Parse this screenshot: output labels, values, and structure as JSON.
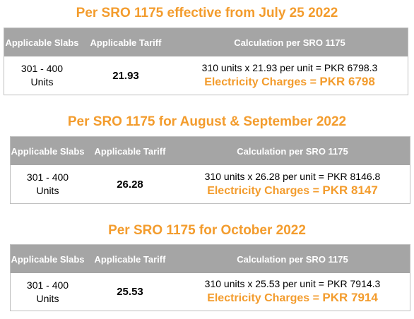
{
  "sections": [
    {
      "title": "Per SRO 1175 effective from July 25 2022",
      "headers": [
        "Applicable Slabs",
        "Applicable Tariff",
        "Calculation per SRO 1175"
      ],
      "slab": "301 -  400 Units",
      "tariff": "21.93",
      "calculation": "310 units x 21.93 per unit = PKR 6798.3",
      "charges_label": "Electricity Charges = ",
      "charges_amount": "PKR 6798"
    },
    {
      "title": "Per SRO 1175 for August & September 2022",
      "headers": [
        "Applicable Slabs",
        "Applicable Tariff",
        "Calculation per SRO 1175"
      ],
      "slab": "301 -  400 Units",
      "tariff": "26.28",
      "calculation": "310 units x 26.28 per unit = PKR 8146.8",
      "charges_label": "Electricity Charges = ",
      "charges_amount": "PKR 8147"
    },
    {
      "title": "Per SRO 1175 for October 2022",
      "headers": [
        "Applicable Slabs",
        "Applicable Tariff",
        "Calculation per SRO 1175"
      ],
      "slab": "301 -  400 Units",
      "tariff": "25.53",
      "calculation": "310 units x 25.53 per unit = PKR 7914.3",
      "charges_label": "Electricity Charges = ",
      "charges_amount": "PKR 7914"
    }
  ]
}
